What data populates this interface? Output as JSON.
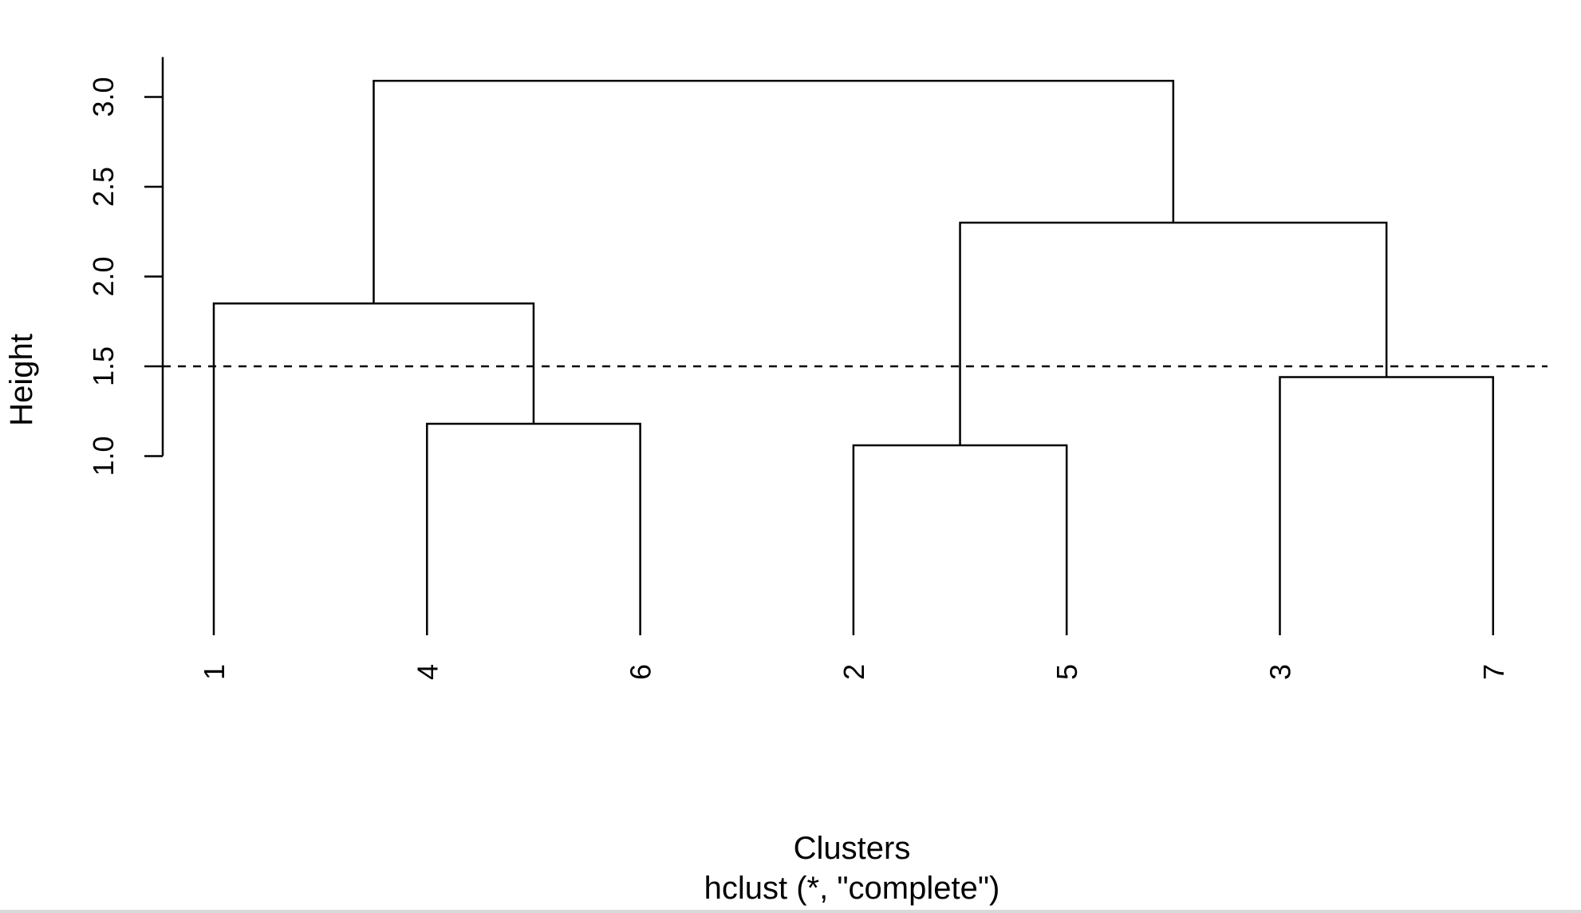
{
  "chart_data": {
    "type": "dendrogram",
    "method": "complete",
    "xlabel": "Clusters",
    "subtitle": "hclust (*, \"complete\")",
    "ylabel": "Height",
    "yticks": [
      "1.0",
      "1.5",
      "2.0",
      "2.5",
      "3.0"
    ],
    "ytick_values": [
      1.0,
      1.5,
      2.0,
      2.5,
      3.0
    ],
    "leaf_order": [
      "1",
      "4",
      "6",
      "2",
      "5",
      "3",
      "7"
    ],
    "merges": [
      {
        "left": "4",
        "right": "6",
        "height": 1.18
      },
      {
        "left": "2",
        "right": "5",
        "height": 1.06
      },
      {
        "left": "3",
        "right": "7",
        "height": 1.44
      },
      {
        "left": "1",
        "right": "(4,6)",
        "height": 1.85
      },
      {
        "left": "(2,5)",
        "right": "(3,7)",
        "height": 2.3
      },
      {
        "left": "(1,4,6)",
        "right": "(2,5,3,7)",
        "height": 3.09
      }
    ],
    "cut_height": 1.5,
    "cut_line_style": "dashed",
    "grid": false,
    "line_color": "#000000"
  }
}
